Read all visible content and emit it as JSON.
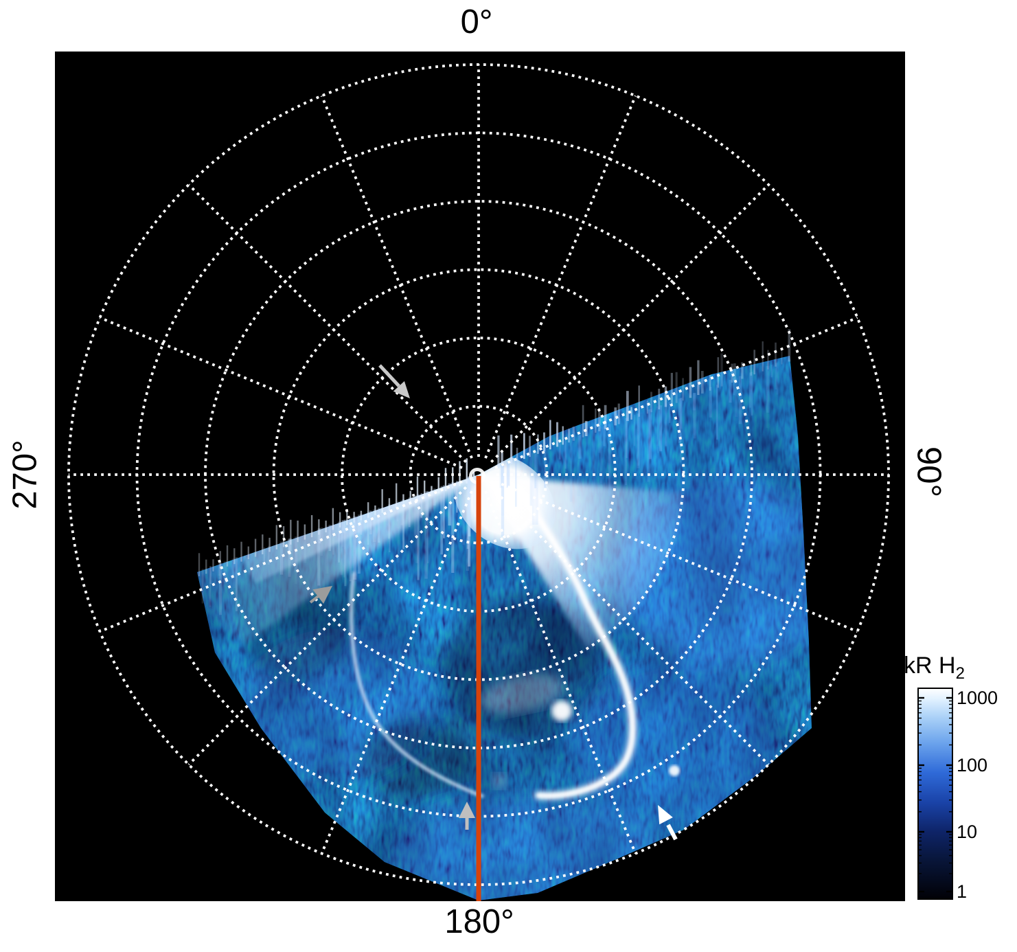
{
  "figure": {
    "angle_labels": {
      "top": "0°",
      "right": "90°",
      "bottom": "180°",
      "left": "270°"
    },
    "colorbar": {
      "label_main": "kR H",
      "label_sub": "2",
      "tick_labels": [
        "1000",
        "100",
        "10",
        "1"
      ]
    },
    "colors": {
      "page_background": "#ffffff",
      "plot_background": "#000000",
      "grid_dots": "#ffffff",
      "meridian_line": "#d6430b",
      "pole_marker": "#ffffff",
      "arrow_light_gray": "#c9c9c9",
      "arrow_gray": "#9c9c9c",
      "arrow_white": "#ffffff"
    }
  },
  "chart_data": {
    "type": "heatmap",
    "projection": "polar",
    "quantity": "H2 auroral emission brightness",
    "units": "kR",
    "title": "",
    "azimuth_tick_labels": [
      "0°",
      "90°",
      "180°",
      "270°"
    ],
    "azimuth_gridline_step_deg": 22.5,
    "radial_gridlines_count": 6,
    "data_coverage_azimuth_deg": [
      55,
      252
    ],
    "color_scale": {
      "label": "kR H2",
      "type": "log",
      "min": 1,
      "max": 1000,
      "ticks": [
        1000,
        100,
        10,
        1
      ],
      "palette_dark_to_bright": [
        "#010106",
        "#0c1d5a",
        "#1e4cb0",
        "#3f7ee0",
        "#8fc2f2",
        "#ffffff"
      ]
    },
    "reference_line": {
      "type": "meridian",
      "azimuth_deg": 180,
      "color": "#d6430b",
      "from": "pole",
      "to": "outer_edge"
    },
    "pole_marker": {
      "shape": "open-circle",
      "color": "#ffffff"
    },
    "features": [
      {
        "name": "main auroral oval arc",
        "approx_azimuth_deg": [
          109,
          170
        ],
        "approx_radius_rings": [
          0.7,
          4.8
        ],
        "brightness": "saturated ~1000 kR"
      },
      {
        "name": "bright polar fan",
        "approx_azimuth_deg": [
          95,
          148
        ],
        "approx_radius_rings": [
          0,
          2.7
        ],
        "brightness": "saturated ~1000 kR"
      },
      {
        "name": "streaked dusk-side fan",
        "approx_azimuth_deg": [
          234,
          252
        ],
        "approx_radius_rings": [
          0,
          4.5
        ],
        "brightness": "~300-1000 kR"
      },
      {
        "name": "secondary arc left of oval",
        "approx_azimuth_deg": [
          180,
          232
        ],
        "approx_radius_rings": [
          2.3,
          4.7
        ],
        "brightness": "~100-300 kR"
      },
      {
        "name": "bright knot on oval",
        "approx_azimuth_deg": 161,
        "approx_radius_rings": 3.7,
        "brightness": "~1000 kR"
      },
      {
        "name": "isolated bright spot",
        "approx_azimuth_deg": 146,
        "approx_radius_rings": 5.2,
        "brightness": "~300 kR"
      },
      {
        "name": "diffuse speckled emission",
        "approx_azimuth_deg": [
          55,
          252
        ],
        "approx_radius_rings": [
          0,
          6.2
        ],
        "brightness": "~1-100 kR"
      }
    ],
    "annotations": [
      {
        "type": "arrow",
        "color": "#c9c9c9",
        "points": "down-right",
        "tip_azimuth_deg": 318,
        "tip_radius_rings": 1.5
      },
      {
        "type": "arrow",
        "color": "#9c9c9c",
        "points": "up-right",
        "tip_azimuth_deg": 233,
        "tip_radius_rings": 2.7
      },
      {
        "type": "arrow",
        "color": "#bfbfbf",
        "points": "up",
        "tip_azimuth_deg": 182,
        "tip_radius_rings": 4.8
      },
      {
        "type": "arrow",
        "color": "#ffffff",
        "points": "up-left",
        "tip_azimuth_deg": 151,
        "tip_radius_rings": 5.5
      }
    ]
  }
}
